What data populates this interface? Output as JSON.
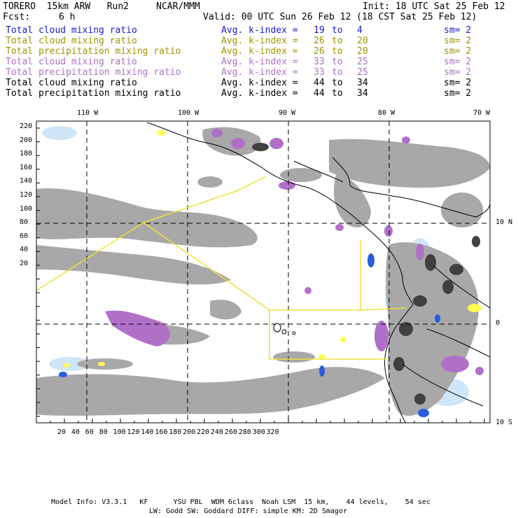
{
  "header": {
    "model": "TORERO  15km ARW   Run2     NCAR/MMM",
    "init": "Init: 18 UTC Sat 25 Feb 12",
    "fcst_label": "Fcst:",
    "fcst_value": "6 h",
    "valid": "Valid: 00 UTC Sun 26 Feb 12 (18 CST Sat 25 Feb 12)"
  },
  "legend": [
    {
      "field": "Total cloud mixing ratio",
      "avg": "Avg. k-index =",
      "from": "19",
      "to": "4",
      "sm": "sm= 2",
      "color": "#1a1acc"
    },
    {
      "field": "Total cloud mixing ratio",
      "avg": "Avg. k-index =",
      "from": "26",
      "to": "20",
      "sm": "sm= 2",
      "color": "#a09400"
    },
    {
      "field": "Total precipitation mixing ratio",
      "avg": "Avg. k-index =",
      "from": "26",
      "to": "20",
      "sm": "sm= 2",
      "color": "#a09400"
    },
    {
      "field": "Total cloud mixing ratio",
      "avg": "Avg. k-index =",
      "from": "33",
      "to": "25",
      "sm": "sm= 2",
      "color": "#b070c8"
    },
    {
      "field": "Total precipitation mixing ratio",
      "avg": "Avg. k-index =",
      "from": "33",
      "to": "25",
      "sm": "sm= 2",
      "color": "#b070c8"
    },
    {
      "field": "Total cloud mixing ratio",
      "avg": "Avg. k-index =",
      "from": "44",
      "to": "34",
      "sm": "sm= 2",
      "color": "#000000"
    },
    {
      "field": "Total precipitation mixing ratio",
      "avg": "Avg. k-index =",
      "from": "44",
      "to": "34",
      "sm": "sm= 2",
      "color": "#000000"
    }
  ],
  "to_word": "to",
  "map": {
    "lon_labels": [
      "110 W",
      "100 W",
      "90 W",
      "80 W",
      "70 W"
    ],
    "lat_labels": [
      "10 N",
      "0",
      "10 S"
    ],
    "y_ticks": [
      "220",
      "200",
      "180",
      "160",
      "140",
      "120",
      "100",
      "80",
      "60",
      "40",
      "20"
    ],
    "x_ticks": [
      "20",
      "40",
      "60",
      "80",
      "100",
      "120",
      "140",
      "160",
      "180",
      "200",
      "220",
      "240",
      "260",
      "280",
      "300",
      "320"
    ],
    "colors": {
      "cloud_gray": "#a8a8a8",
      "cloud_dark": "#404040",
      "precip_violet": "#b070c8",
      "light_blue": "#cfe6f8",
      "blue": "#2a5be0",
      "yellow": "#ffff50",
      "boundary_yellow": "#f0e040",
      "grid": "#000000"
    }
  },
  "footer": {
    "line1": "Model Info: V3.3.1   KF      YSU PBL  WDM 6class  Noah LSM  15 km,    44 levels,    54 sec",
    "line2": "LW: Godd SW: Goddard DIFF: simple KM: 2D Smagor"
  }
}
